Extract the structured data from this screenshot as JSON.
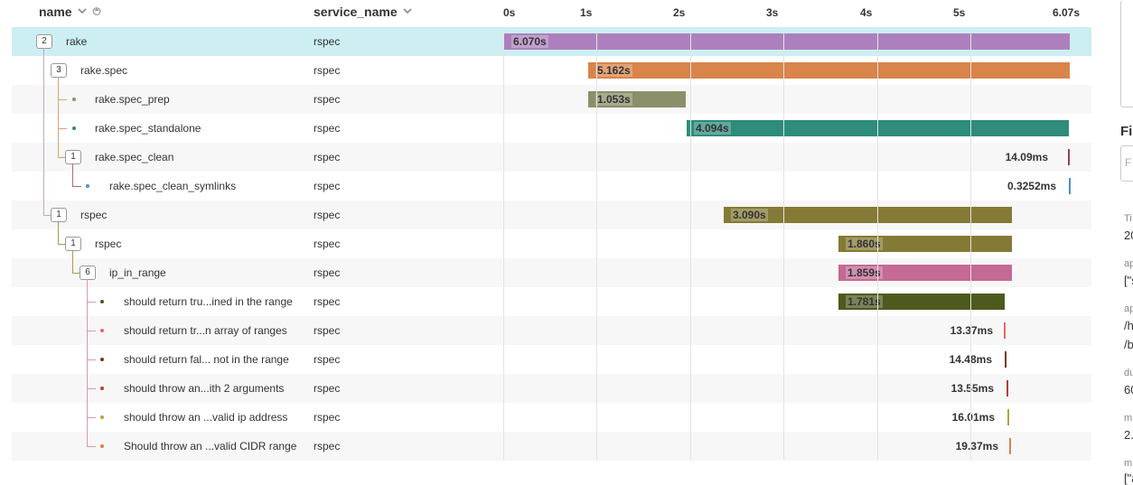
{
  "header": {
    "name_label": "name",
    "service_label": "service_name",
    "ticks": [
      "0s",
      "1s",
      "2s",
      "3s",
      "4s",
      "5s",
      "6.07s"
    ]
  },
  "rows": [
    {
      "count": "2",
      "name": "rake",
      "service": "rspec",
      "duration": "6.070s"
    },
    {
      "count": "3",
      "name": "rake.spec",
      "service": "rspec",
      "duration": "5.162s"
    },
    {
      "count": "",
      "name": "rake.spec_prep",
      "service": "rspec",
      "duration": "1.053s"
    },
    {
      "count": "",
      "name": "rake.spec_standalone",
      "service": "rspec",
      "duration": "4.094s"
    },
    {
      "count": "1",
      "name": "rake.spec_clean",
      "service": "rspec",
      "duration": "14.09ms"
    },
    {
      "count": "",
      "name": "rake.spec_clean_symlinks",
      "service": "rspec",
      "duration": "0.3252ms"
    },
    {
      "count": "1",
      "name": "rspec",
      "service": "rspec",
      "duration": "3.090s"
    },
    {
      "count": "1",
      "name": "rspec",
      "service": "rspec",
      "duration": "1.860s"
    },
    {
      "count": "6",
      "name": "ip_in_range",
      "service": "rspec",
      "duration": "1.859s"
    },
    {
      "count": "",
      "name": "should return tru...ined in the range",
      "service": "rspec",
      "duration": "1.781s"
    },
    {
      "count": "",
      "name": "should return tr...n array of ranges",
      "service": "rspec",
      "duration": "13.37ms"
    },
    {
      "count": "",
      "name": "should return fal... not in the range",
      "service": "rspec",
      "duration": "14.48ms"
    },
    {
      "count": "",
      "name": "should throw an...ith 2 arguments",
      "service": "rspec",
      "duration": "13.55ms"
    },
    {
      "count": "",
      "name": "should throw an ...valid ip address",
      "service": "rspec",
      "duration": "16.01ms"
    },
    {
      "count": "",
      "name": "Should throw an ...valid CIDR range",
      "service": "rspec",
      "duration": "19.37ms"
    }
  ],
  "colors": {
    "rake": "#ad80bd",
    "rake_spec": "#d9844a",
    "rake_spec_prep": "#8c8f6a",
    "rake_spec_standalone": "#2e8c7c",
    "rake_spec_clean": "#9a3d5a",
    "rake_spec_clean_symlinks": "#4a90d9",
    "rspec_outer": "#857a35",
    "rspec_inner": "#857a35",
    "ip_in_range": "#c46a94",
    "test1": "#4d5a1e",
    "test2": "#e06b5f",
    "test3": "#7a3a1a",
    "test4": "#b04030",
    "test5": "#b8a040",
    "test6": "#d9844a",
    "selected_row": "#cdeef2"
  },
  "side_panel": {
    "title": "Fi",
    "input_placeholder": "F",
    "fields": [
      {
        "label": "Ti",
        "value": "20"
      },
      {
        "label": "ap",
        "value": "[\"s"
      },
      {
        "label": "ap",
        "value": "/h"
      },
      {
        "label": "",
        "value": "/b"
      },
      {
        "label": "du",
        "value": "60"
      },
      {
        "label": "m",
        "value": "2."
      },
      {
        "label": "m",
        "value": "[\"a"
      }
    ]
  }
}
